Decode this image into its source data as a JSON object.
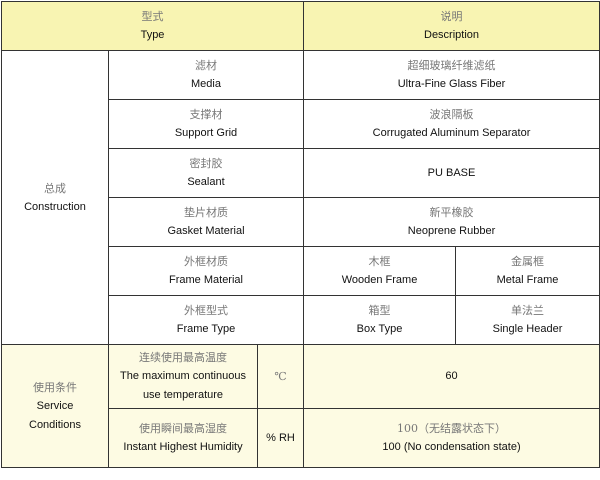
{
  "header": {
    "type": {
      "cn": "型式",
      "en": "Type"
    },
    "description": {
      "cn": "说明",
      "en": "Description"
    }
  },
  "construction": {
    "label": {
      "cn": "总成",
      "en": "Construction"
    },
    "rows": [
      {
        "cn": "滤材",
        "en": "Media",
        "val_cn": "超细玻璃纤维滤纸",
        "val_en": "Ultra-Fine Glass Fiber"
      },
      {
        "cn": "支撑材",
        "en": "Support Grid",
        "val_cn": "波浪隔板",
        "val_en": "Corrugated Aluminum Separator"
      },
      {
        "cn": "密封胶",
        "en": "Sealant",
        "val_en": "PU BASE"
      },
      {
        "cn": "垫片材质",
        "en": "Gasket Material",
        "val_cn": "新平橡胶",
        "val_en": "Neoprene Rubber"
      },
      {
        "cn": "外框材质",
        "en": "Frame Material",
        "a_cn": "木框",
        "a_en": "Wooden Frame",
        "b_cn": "金属框",
        "b_en": "Metal Frame"
      },
      {
        "cn": "外框型式",
        "en": "Frame Type",
        "a_cn": "箱型",
        "a_en": "Box Type",
        "b_cn": "单法兰",
        "b_en": "Single Header"
      }
    ]
  },
  "service": {
    "label": {
      "cn": "使用条件",
      "en1": "Service",
      "en2": "Conditions"
    },
    "rows": [
      {
        "cn": "连续使用最高温度",
        "en1": "The maximum continuous",
        "en2": "use temperature",
        "unit": "℃",
        "val": "60"
      },
      {
        "cn": "使用瞬间最高湿度",
        "en1": "Instant Highest Humidity",
        "unit": "% RH",
        "val_cn": "100（无结露状态下）",
        "val_en": "100 (No condensation state)"
      }
    ]
  }
}
